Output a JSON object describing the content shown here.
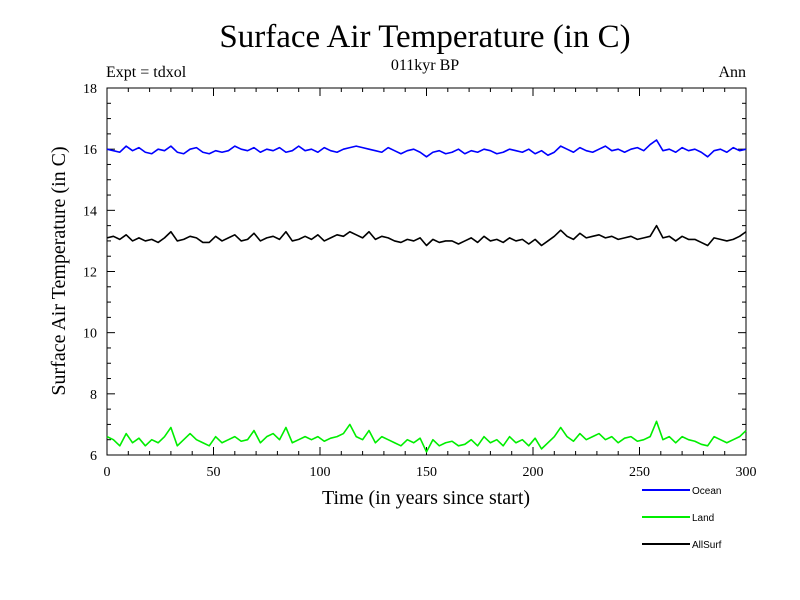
{
  "chart_data": {
    "type": "line",
    "title": "Surface Air Temperature (in C)",
    "subtitle": "011kyr BP",
    "left_note": "Expt = tdxol",
    "right_note": "Ann",
    "xlabel": "Time (in years since start)",
    "ylabel": "Surface Air Temperature (in C)",
    "xlim": [
      0,
      300
    ],
    "ylim": [
      6,
      18
    ],
    "x_ticks": [
      "0",
      "50",
      "100",
      "150",
      "200",
      "250",
      "300"
    ],
    "y_ticks": [
      "6",
      "8",
      "10",
      "12",
      "14",
      "16",
      "18"
    ],
    "grid": false,
    "legend_position": "bottom-right",
    "x_step": 3,
    "series": [
      {
        "name": "Ocean",
        "color": "#0000ff",
        "values": [
          16.0,
          15.95,
          15.9,
          16.1,
          15.95,
          16.05,
          15.9,
          15.85,
          16.0,
          15.95,
          16.1,
          15.9,
          15.85,
          16.0,
          16.05,
          15.9,
          15.85,
          15.95,
          15.9,
          15.95,
          16.1,
          16.0,
          15.95,
          16.05,
          15.9,
          16.0,
          15.95,
          16.05,
          15.9,
          15.95,
          16.1,
          15.95,
          16.0,
          15.9,
          16.05,
          15.95,
          15.9,
          16.0,
          16.05,
          16.1,
          16.05,
          16.0,
          15.95,
          15.9,
          16.05,
          15.95,
          15.85,
          15.95,
          16.0,
          15.9,
          15.75,
          15.9,
          15.95,
          15.85,
          15.9,
          16.0,
          15.85,
          15.95,
          15.9,
          16.0,
          15.95,
          15.85,
          15.9,
          16.0,
          15.95,
          15.9,
          16.0,
          15.85,
          15.95,
          15.8,
          15.9,
          16.1,
          16.0,
          15.9,
          16.05,
          15.95,
          15.9,
          16.0,
          16.1,
          15.95,
          16.0,
          15.9,
          16.0,
          16.05,
          15.95,
          16.15,
          16.3,
          15.95,
          16.0,
          15.9,
          16.05,
          15.95,
          16.0,
          15.9,
          15.75,
          15.95,
          16.0,
          15.9,
          16.05,
          15.95,
          16.0
        ]
      },
      {
        "name": "Land",
        "color": "#00ee00",
        "values": [
          6.6,
          6.5,
          6.3,
          6.7,
          6.4,
          6.55,
          6.3,
          6.5,
          6.4,
          6.6,
          6.9,
          6.3,
          6.5,
          6.7,
          6.5,
          6.4,
          6.3,
          6.6,
          6.4,
          6.5,
          6.6,
          6.45,
          6.5,
          6.8,
          6.4,
          6.6,
          6.7,
          6.5,
          6.9,
          6.4,
          6.5,
          6.6,
          6.5,
          6.6,
          6.45,
          6.55,
          6.6,
          6.7,
          7.0,
          6.6,
          6.5,
          6.8,
          6.4,
          6.6,
          6.5,
          6.4,
          6.3,
          6.5,
          6.4,
          6.55,
          6.1,
          6.5,
          6.3,
          6.4,
          6.45,
          6.3,
          6.35,
          6.5,
          6.3,
          6.6,
          6.4,
          6.5,
          6.3,
          6.6,
          6.4,
          6.5,
          6.3,
          6.55,
          6.2,
          6.4,
          6.6,
          6.9,
          6.6,
          6.45,
          6.7,
          6.5,
          6.6,
          6.7,
          6.5,
          6.6,
          6.4,
          6.55,
          6.6,
          6.45,
          6.5,
          6.6,
          7.1,
          6.5,
          6.6,
          6.4,
          6.6,
          6.5,
          6.45,
          6.35,
          6.3,
          6.6,
          6.5,
          6.4,
          6.5,
          6.6,
          6.8
        ]
      },
      {
        "name": "AllSurf",
        "color": "#000000",
        "values": [
          13.1,
          13.15,
          13.05,
          13.2,
          13.0,
          13.1,
          13.0,
          13.05,
          12.95,
          13.1,
          13.3,
          13.0,
          13.05,
          13.15,
          13.1,
          12.95,
          12.95,
          13.15,
          13.0,
          13.1,
          13.2,
          13.0,
          13.05,
          13.25,
          13.0,
          13.1,
          13.15,
          13.05,
          13.3,
          13.0,
          13.05,
          13.15,
          13.05,
          13.2,
          13.0,
          13.1,
          13.2,
          13.15,
          13.3,
          13.2,
          13.1,
          13.3,
          13.05,
          13.15,
          13.1,
          13.0,
          12.95,
          13.05,
          13.0,
          13.1,
          12.85,
          13.05,
          12.95,
          13.0,
          13.0,
          12.9,
          13.0,
          13.1,
          12.95,
          13.15,
          13.0,
          13.05,
          12.95,
          13.1,
          13.0,
          13.05,
          12.9,
          13.05,
          12.85,
          13.0,
          13.15,
          13.35,
          13.15,
          13.05,
          13.25,
          13.1,
          13.15,
          13.2,
          13.1,
          13.15,
          13.05,
          13.1,
          13.15,
          13.05,
          13.1,
          13.15,
          13.5,
          13.1,
          13.15,
          13.0,
          13.15,
          13.05,
          13.05,
          12.95,
          12.85,
          13.1,
          13.05,
          13.0,
          13.05,
          13.15,
          13.3
        ]
      }
    ]
  }
}
